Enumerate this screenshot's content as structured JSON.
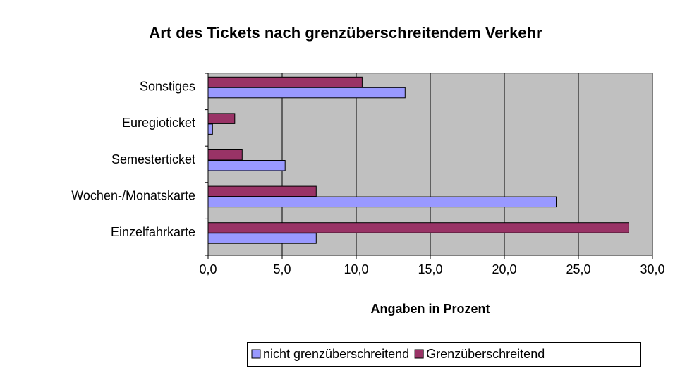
{
  "chart_data": {
    "type": "barh",
    "title": "Art des Tickets nach grenzüberschreitendem Verkehr",
    "xlabel": "Angaben in Prozent",
    "categories": [
      "Sonstiges",
      "Euregioticket",
      "Semesterticket",
      "Wochen-/Monatskarte",
      "Einzelfahrkarte"
    ],
    "series": [
      {
        "name": "nicht grenzüberschreitend",
        "color": "#9999ff",
        "values": [
          13.3,
          0.3,
          5.2,
          23.5,
          7.3
        ]
      },
      {
        "name": "Grenzüberschreitend",
        "color": "#993366",
        "values": [
          10.4,
          1.8,
          2.3,
          7.3,
          28.4
        ]
      }
    ],
    "xlim": [
      0,
      30
    ],
    "xticks": [
      {
        "value": 0,
        "label": "0,0"
      },
      {
        "value": 5,
        "label": "5,0"
      },
      {
        "value": 10,
        "label": "10,0"
      },
      {
        "value": 15,
        "label": "15,0"
      },
      {
        "value": 20,
        "label": "20,0"
      },
      {
        "value": 25,
        "label": "25,0"
      },
      {
        "value": 30,
        "label": "30,0"
      }
    ],
    "grid": true,
    "legend": "bottom"
  }
}
